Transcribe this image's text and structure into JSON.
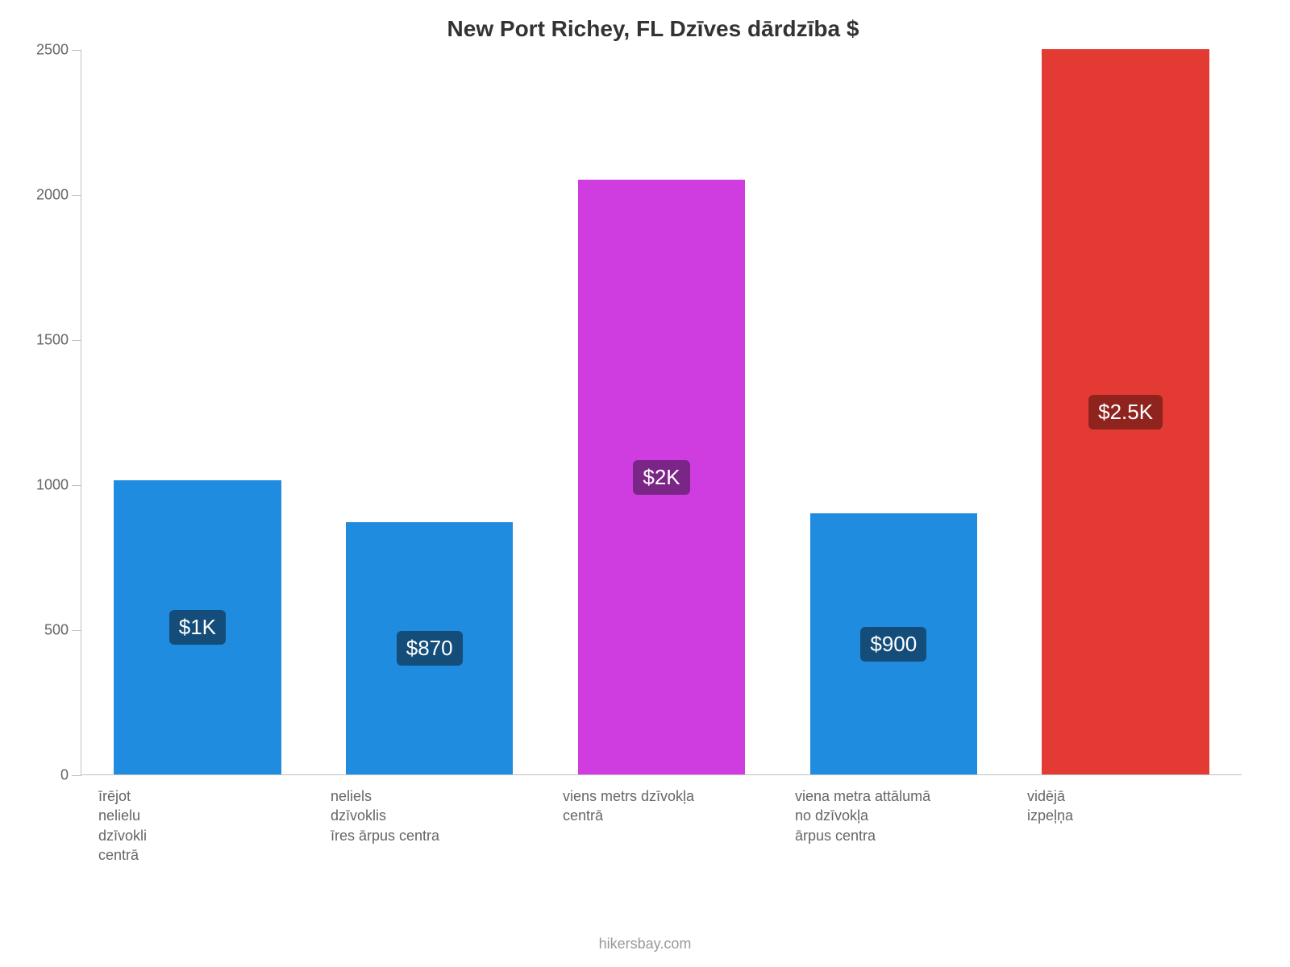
{
  "chart": {
    "type": "bar",
    "title": "New Port Richey, FL Dzīves dārdzība $",
    "title_fontsize": 28,
    "title_color": "#333333",
    "background_color": "#ffffff",
    "axis_color": "#c0c0c0",
    "tick_label_color": "#666666",
    "tick_fontsize": 18,
    "ylim": [
      0,
      2500
    ],
    "ytick_step": 500,
    "yticks": [
      {
        "value": 0,
        "label": "0"
      },
      {
        "value": 500,
        "label": "500"
      },
      {
        "value": 1000,
        "label": "1000"
      },
      {
        "value": 1500,
        "label": "1500"
      },
      {
        "value": 2000,
        "label": "2000"
      },
      {
        "value": 2500,
        "label": "2500"
      }
    ],
    "bar_width": 0.72,
    "bars": [
      {
        "category": "īrējot\nnelielu\ndzīvokli\ncentrā",
        "value": 1015,
        "display_label": "$1K",
        "bar_color": "#1f8ce0",
        "pill_color": "#144d7a"
      },
      {
        "category": "neliels\ndzīvoklis\nīres ārpus centra",
        "value": 870,
        "display_label": "$870",
        "bar_color": "#1f8ce0",
        "pill_color": "#144d7a"
      },
      {
        "category": "viens metrs dzīvokļa\ncentrā",
        "value": 2050,
        "display_label": "$2K",
        "bar_color": "#cf3de0",
        "pill_color": "#7a2687"
      },
      {
        "category": "viena metra attālumā\nno dzīvokļa\nārpus centra",
        "value": 900,
        "display_label": "$900",
        "bar_color": "#1f8ce0",
        "pill_color": "#144d7a"
      },
      {
        "category": "vidējā\nizpeļņa",
        "value": 2500,
        "display_label": "$2.5K",
        "bar_color": "#e33b33",
        "pill_color": "#8f241f"
      }
    ],
    "category_label_color": "#666666",
    "category_label_fontsize": 18,
    "value_label_fontsize": 26,
    "value_label_text_color": "#ffffff"
  },
  "source": "hikersbay.com",
  "source_color": "#999999",
  "source_fontsize": 18
}
